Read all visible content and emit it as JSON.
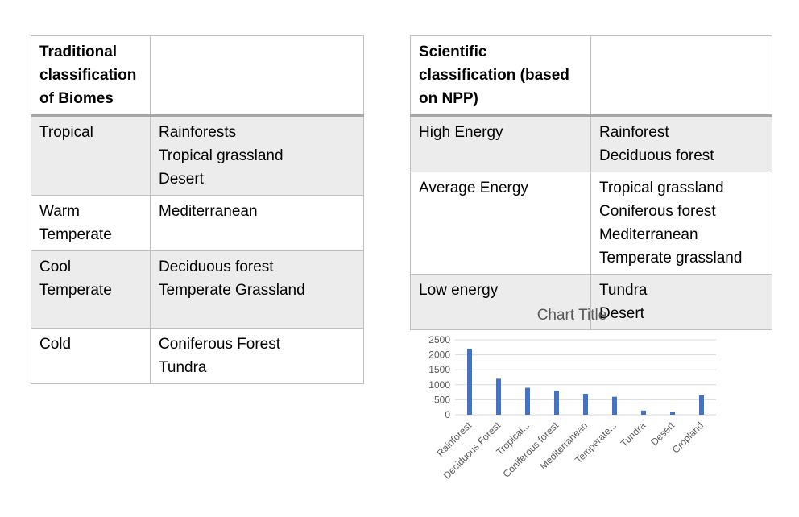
{
  "traditional_table": {
    "header": [
      "Traditional classification of Biomes",
      ""
    ],
    "header_lines": [
      "Traditional",
      "classification",
      "of Biomes"
    ],
    "rows": [
      {
        "category": [
          "Tropical"
        ],
        "biomes": [
          "Rainforests",
          "Tropical grassland",
          "Desert"
        ]
      },
      {
        "category": [
          "Warm",
          "Temperate"
        ],
        "biomes": [
          "Mediterranean"
        ]
      },
      {
        "category": [
          "Cool",
          "Temperate"
        ],
        "biomes": [
          "Deciduous forest",
          "Temperate Grassland"
        ]
      },
      {
        "category": [
          "Cold"
        ],
        "biomes": [
          "Coniferous Forest",
          "Tundra"
        ]
      }
    ]
  },
  "scientific_table": {
    "header_lines": [
      "Scientific",
      "classification (based",
      "on NPP)"
    ],
    "rows": [
      {
        "category": [
          "High Energy"
        ],
        "biomes": [
          "Rainforest",
          "Deciduous forest"
        ]
      },
      {
        "category": [
          "Average Energy"
        ],
        "biomes": [
          "Tropical grassland",
          "Coniferous forest",
          "Mediterranean",
          "Temperate grassland"
        ]
      },
      {
        "category": [
          "Low energy"
        ],
        "biomes": [
          "Tundra",
          "Desert"
        ]
      }
    ]
  },
  "colors": {
    "bar": "#4472c4",
    "gridline": "#d9d9d9",
    "shaded_row": "#ececec",
    "chart_text": "#595959"
  },
  "chart_data": {
    "type": "bar",
    "title": "Chart Title",
    "categories": [
      "Rainforest",
      "Deciduous Forest",
      "Tropical...",
      "Coniferous forest",
      "Mediterranean",
      "Temperate...",
      "Tundra",
      "Desert",
      "Cropland"
    ],
    "values": [
      2200,
      1200,
      900,
      800,
      700,
      600,
      140,
      90,
      650
    ],
    "ylim": [
      0,
      2500
    ],
    "yticks": [
      0,
      500,
      1000,
      1500,
      2000,
      2500
    ],
    "xlabel": "",
    "ylabel": "",
    "grid": true,
    "legend": "none"
  }
}
